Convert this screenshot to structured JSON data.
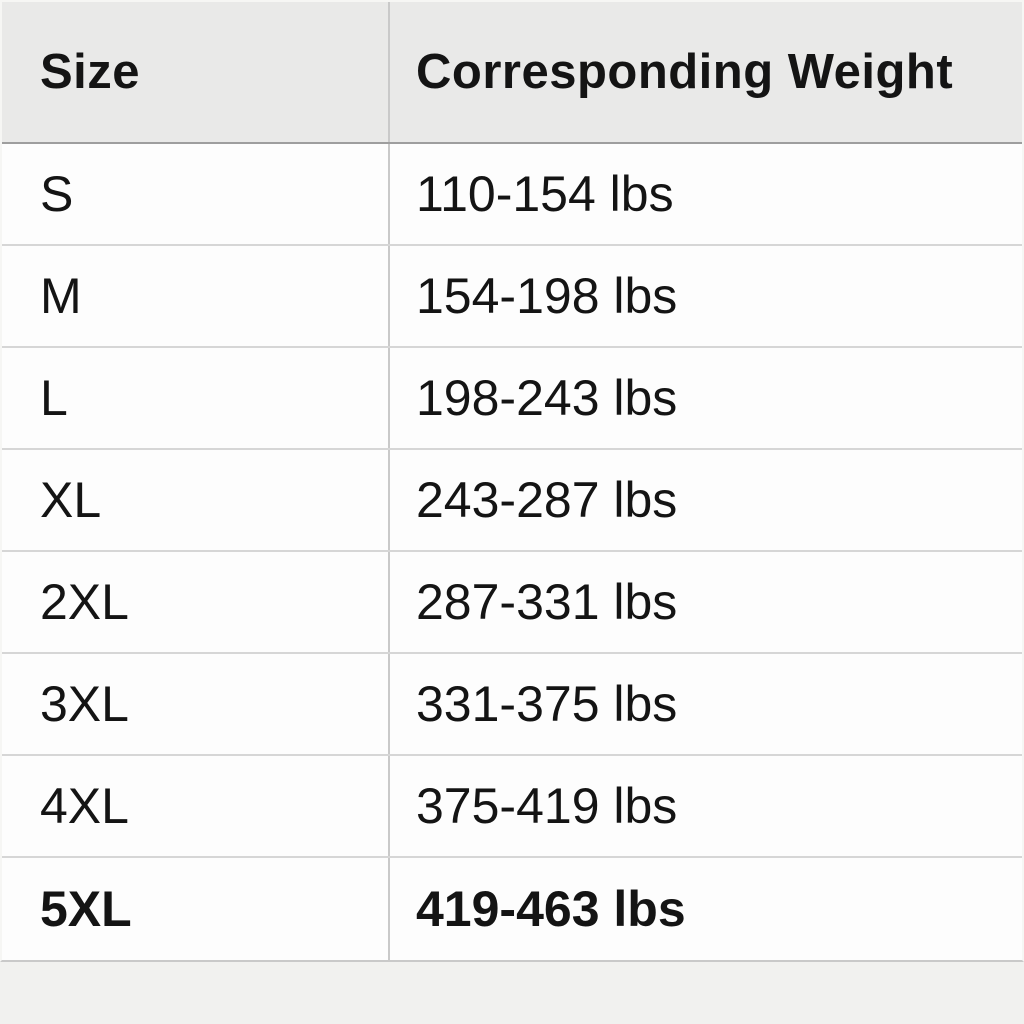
{
  "table": {
    "columns": [
      {
        "label": "Size"
      },
      {
        "label": "Corresponding Weight"
      }
    ],
    "rows": [
      {
        "size": "S",
        "weight": "110-154 lbs",
        "bold": false
      },
      {
        "size": "M",
        "weight": "154-198 lbs",
        "bold": false
      },
      {
        "size": "L",
        "weight": "198-243 lbs",
        "bold": false
      },
      {
        "size": "XL",
        "weight": "243-287 lbs",
        "bold": false
      },
      {
        "size": "2XL",
        "weight": "287-331 lbs",
        "bold": false
      },
      {
        "size": "3XL",
        "weight": "331-375 lbs",
        "bold": false
      },
      {
        "size": "4XL",
        "weight": "375-419 lbs",
        "bold": false
      },
      {
        "size": "5XL",
        "weight": "419-463 lbs",
        "bold": true
      }
    ],
    "colors": {
      "header_bg": "#e9e9e8",
      "row_bg": "#fdfdfd",
      "page_bg": "#f1f1ef",
      "header_rule": "#9e9e9e",
      "row_rule": "#d6d6d6",
      "column_rule": "#c9c9c9",
      "text": "#141414"
    }
  }
}
